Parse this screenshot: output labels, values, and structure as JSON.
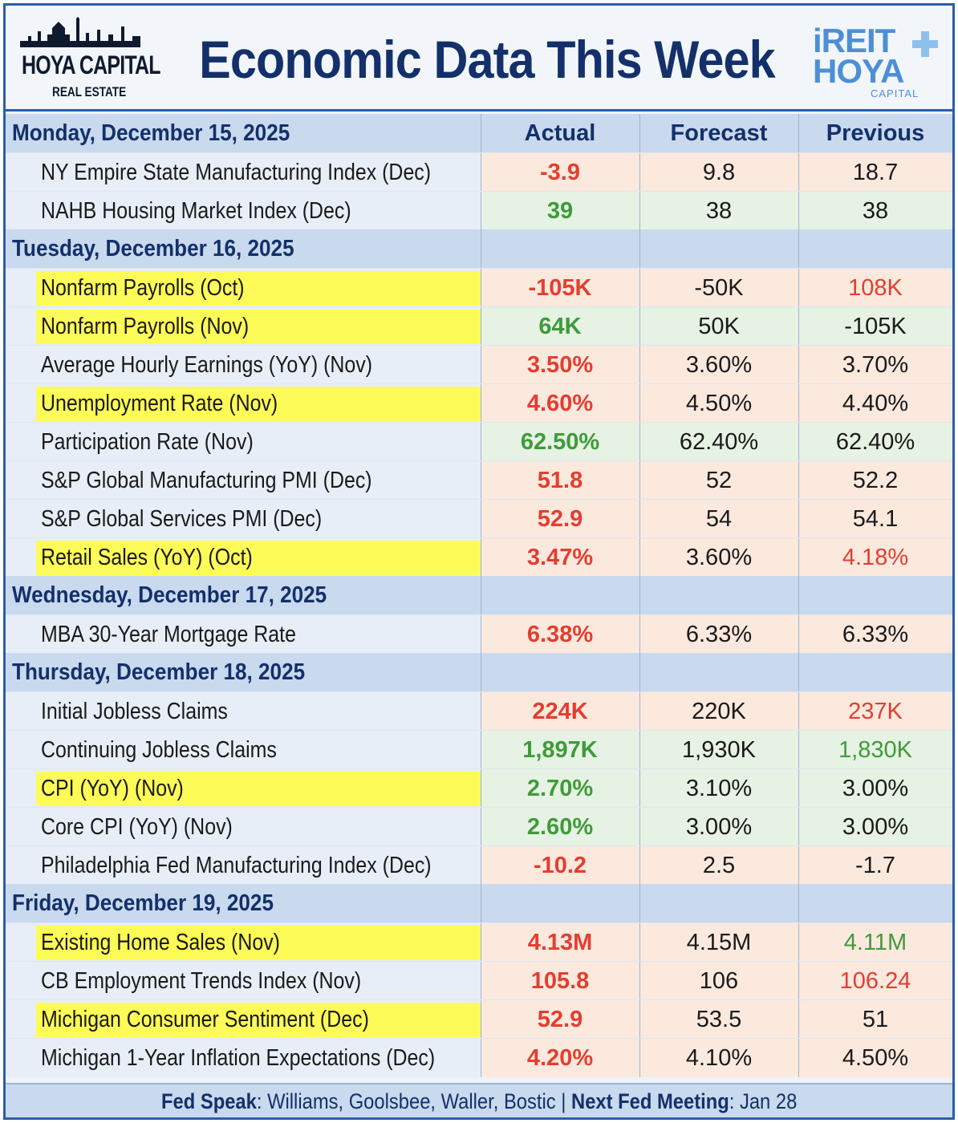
{
  "header": {
    "left_logo": {
      "brand": "HOYA CAPITAL",
      "sub": "REAL ESTATE"
    },
    "title": "Economic Data This Week",
    "right_logo": {
      "line1": "iREIT",
      "line2": "HOYA",
      "line3": "CAPITAL"
    }
  },
  "columns": {
    "actual": "Actual",
    "forecast": "Forecast",
    "previous": "Previous"
  },
  "colors": {
    "title": "#13306a",
    "red": "#e53d2f",
    "green": "#3f9b3a",
    "highlight": "#fdfb57",
    "day_bar": "#c9d9ee",
    "border": "#2b5ea8"
  },
  "days": [
    {
      "label": "Monday, December 15, 2025",
      "rows": [
        {
          "name": "NY Empire State Manufacturing Index (Dec)",
          "actual": "-3.9",
          "forecast": "9.8",
          "previous": "18.7",
          "highlight": false,
          "bg": "red",
          "actual_color": "red",
          "previous_color": "dark"
        },
        {
          "name": "NAHB Housing Market Index (Dec)",
          "actual": "39",
          "forecast": "38",
          "previous": "38",
          "highlight": false,
          "bg": "green",
          "actual_color": "green",
          "previous_color": "dark"
        }
      ]
    },
    {
      "label": "Tuesday, December 16, 2025",
      "rows": [
        {
          "name": "Nonfarm Payrolls (Oct)",
          "actual": "-105K",
          "forecast": "-50K",
          "previous": "108K",
          "highlight": true,
          "bg": "red",
          "actual_color": "red",
          "previous_color": "red"
        },
        {
          "name": "Nonfarm Payrolls (Nov)",
          "actual": "64K",
          "forecast": "50K",
          "previous": "-105K",
          "highlight": true,
          "bg": "green",
          "actual_color": "green",
          "previous_color": "dark"
        },
        {
          "name": "Average Hourly Earnings (YoY) (Nov)",
          "actual": "3.50%",
          "forecast": "3.60%",
          "previous": "3.70%",
          "highlight": false,
          "bg": "red",
          "actual_color": "red",
          "previous_color": "dark"
        },
        {
          "name": "Unemployment Rate (Nov)",
          "actual": "4.60%",
          "forecast": "4.50%",
          "previous": "4.40%",
          "highlight": true,
          "bg": "red",
          "actual_color": "red",
          "previous_color": "dark"
        },
        {
          "name": "Participation Rate (Nov)",
          "actual": "62.50%",
          "forecast": "62.40%",
          "previous": "62.40%",
          "highlight": false,
          "bg": "green",
          "actual_color": "green",
          "previous_color": "dark"
        },
        {
          "name": "S&P Global Manufacturing PMI (Dec)",
          "actual": "51.8",
          "forecast": "52",
          "previous": "52.2",
          "highlight": false,
          "bg": "red",
          "actual_color": "red",
          "previous_color": "dark"
        },
        {
          "name": "S&P Global Services PMI (Dec)",
          "actual": "52.9",
          "forecast": "54",
          "previous": "54.1",
          "highlight": false,
          "bg": "red",
          "actual_color": "red",
          "previous_color": "dark"
        },
        {
          "name": "Retail Sales (YoY) (Oct)",
          "actual": "3.47%",
          "forecast": "3.60%",
          "previous": "4.18%",
          "highlight": true,
          "bg": "red",
          "actual_color": "red",
          "previous_color": "red"
        }
      ]
    },
    {
      "label": "Wednesday, December 17, 2025",
      "rows": [
        {
          "name": "MBA 30-Year Mortgage Rate",
          "actual": "6.38%",
          "forecast": "6.33%",
          "previous": "6.33%",
          "highlight": false,
          "bg": "red",
          "actual_color": "red",
          "previous_color": "dark"
        }
      ]
    },
    {
      "label": "Thursday, December 18, 2025",
      "rows": [
        {
          "name": "Initial Jobless Claims",
          "actual": "224K",
          "forecast": "220K",
          "previous": "237K",
          "highlight": false,
          "bg": "red",
          "actual_color": "red",
          "previous_color": "red"
        },
        {
          "name": "Continuing Jobless Claims",
          "actual": "1,897K",
          "forecast": "1,930K",
          "previous": "1,830K",
          "highlight": false,
          "bg": "green",
          "actual_color": "green",
          "previous_color": "green"
        },
        {
          "name": "CPI (YoY) (Nov)",
          "actual": "2.70%",
          "forecast": "3.10%",
          "previous": "3.00%",
          "highlight": true,
          "bg": "green",
          "actual_color": "green",
          "previous_color": "dark"
        },
        {
          "name": "Core CPI (YoY) (Nov)",
          "actual": "2.60%",
          "forecast": "3.00%",
          "previous": "3.00%",
          "highlight": false,
          "bg": "green",
          "actual_color": "green",
          "previous_color": "dark"
        },
        {
          "name": "Philadelphia Fed Manufacturing Index (Dec)",
          "actual": "-10.2",
          "forecast": "2.5",
          "previous": "-1.7",
          "highlight": false,
          "bg": "red",
          "actual_color": "red",
          "previous_color": "dark"
        }
      ]
    },
    {
      "label": "Friday, December 19, 2025",
      "rows": [
        {
          "name": "Existing Home Sales (Nov)",
          "actual": "4.13M",
          "forecast": "4.15M",
          "previous": "4.11M",
          "highlight": true,
          "bg": "red",
          "actual_color": "red",
          "previous_color": "green"
        },
        {
          "name": "CB Employment Trends Index (Nov)",
          "actual": "105.8",
          "forecast": "106",
          "previous": "106.24",
          "highlight": false,
          "bg": "red",
          "actual_color": "red",
          "previous_color": "red"
        },
        {
          "name": "Michigan Consumer Sentiment (Dec)",
          "actual": "52.9",
          "forecast": "53.5",
          "previous": "51",
          "highlight": true,
          "bg": "red",
          "actual_color": "red",
          "previous_color": "dark"
        },
        {
          "name": "Michigan 1-Year Inflation Expectations (Dec)",
          "actual": "4.20%",
          "forecast": "4.10%",
          "previous": "4.50%",
          "highlight": false,
          "bg": "red",
          "actual_color": "red",
          "previous_color": "dark"
        }
      ]
    }
  ],
  "footer": {
    "fed_speak_label": "Fed Speak",
    "fed_speak_value": ": Williams, Goolsbee, Waller, Bostic | ",
    "next_meeting_label": "Next Fed Meeting",
    "next_meeting_value": ": Jan 28"
  },
  "chart_data": {
    "type": "table",
    "title": "Economic Data This Week",
    "columns": [
      "Actual",
      "Forecast",
      "Previous"
    ],
    "groups": [
      {
        "group": "Monday, December 15, 2025",
        "rows": [
          [
            "NY Empire State Manufacturing Index (Dec)",
            "-3.9",
            "9.8",
            "18.7"
          ],
          [
            "NAHB Housing Market Index (Dec)",
            "39",
            "38",
            "38"
          ]
        ]
      },
      {
        "group": "Tuesday, December 16, 2025",
        "rows": [
          [
            "Nonfarm Payrolls (Oct)",
            "-105K",
            "-50K",
            "108K"
          ],
          [
            "Nonfarm Payrolls (Nov)",
            "64K",
            "50K",
            "-105K"
          ],
          [
            "Average Hourly Earnings (YoY) (Nov)",
            "3.50%",
            "3.60%",
            "3.70%"
          ],
          [
            "Unemployment Rate (Nov)",
            "4.60%",
            "4.50%",
            "4.40%"
          ],
          [
            "Participation Rate (Nov)",
            "62.50%",
            "62.40%",
            "62.40%"
          ],
          [
            "S&P Global Manufacturing PMI (Dec)",
            "51.8",
            "52",
            "52.2"
          ],
          [
            "S&P Global Services PMI (Dec)",
            "52.9",
            "54",
            "54.1"
          ],
          [
            "Retail Sales (YoY) (Oct)",
            "3.47%",
            "3.60%",
            "4.18%"
          ]
        ]
      },
      {
        "group": "Wednesday, December 17, 2025",
        "rows": [
          [
            "MBA 30-Year Mortgage Rate",
            "6.38%",
            "6.33%",
            "6.33%"
          ]
        ]
      },
      {
        "group": "Thursday, December 18, 2025",
        "rows": [
          [
            "Initial Jobless Claims",
            "224K",
            "220K",
            "237K"
          ],
          [
            "Continuing Jobless Claims",
            "1,897K",
            "1,930K",
            "1,830K"
          ],
          [
            "CPI (YoY) (Nov)",
            "2.70%",
            "3.10%",
            "3.00%"
          ],
          [
            "Core CPI (YoY) (Nov)",
            "2.60%",
            "3.00%",
            "3.00%"
          ],
          [
            "Philadelphia Fed Manufacturing Index (Dec)",
            "-10.2",
            "2.5",
            "-1.7"
          ]
        ]
      },
      {
        "group": "Friday, December 19, 2025",
        "rows": [
          [
            "Existing Home Sales (Nov)",
            "4.13M",
            "4.15M",
            "4.11M"
          ],
          [
            "CB Employment Trends Index (Nov)",
            "105.8",
            "106",
            "106.24"
          ],
          [
            "Michigan Consumer Sentiment (Dec)",
            "52.9",
            "53.5",
            "51"
          ],
          [
            "Michigan 1-Year Inflation Expectations (Dec)",
            "4.20%",
            "4.10%",
            "4.50%"
          ]
        ]
      }
    ]
  }
}
